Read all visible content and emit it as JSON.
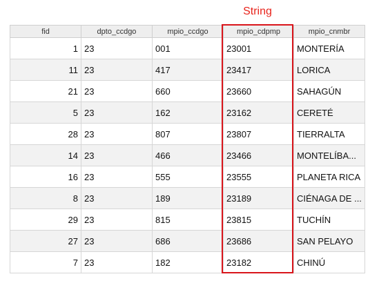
{
  "annotation": {
    "label": "String",
    "color": "#e8231b"
  },
  "table": {
    "columns": [
      "fid",
      "dpto_ccdgo",
      "mpio_ccdgo",
      "mpio_cdpmp",
      "mpio_cnmbr"
    ],
    "rows": [
      [
        "1",
        "23",
        "001",
        "23001",
        "MONTERÍA"
      ],
      [
        "11",
        "23",
        "417",
        "23417",
        "LORICA"
      ],
      [
        "21",
        "23",
        "660",
        "23660",
        "SAHAGÚN"
      ],
      [
        "5",
        "23",
        "162",
        "23162",
        "CERETÉ"
      ],
      [
        "28",
        "23",
        "807",
        "23807",
        "TIERRALTA"
      ],
      [
        "14",
        "23",
        "466",
        "23466",
        "MONTELÍBA..."
      ],
      [
        "16",
        "23",
        "555",
        "23555",
        "PLANETA RICA"
      ],
      [
        "8",
        "23",
        "189",
        "23189",
        "CIÉNAGA DE ..."
      ],
      [
        "29",
        "23",
        "815",
        "23815",
        "TUCHÍN"
      ],
      [
        "27",
        "23",
        "686",
        "23686",
        "SAN PELAYO"
      ],
      [
        "7",
        "23",
        "182",
        "23182",
        "CHINÚ"
      ]
    ]
  },
  "colors": {
    "highlight": "#d9141a",
    "row_alt": "#f2f2f2",
    "header_bg": "#eeeeee"
  }
}
